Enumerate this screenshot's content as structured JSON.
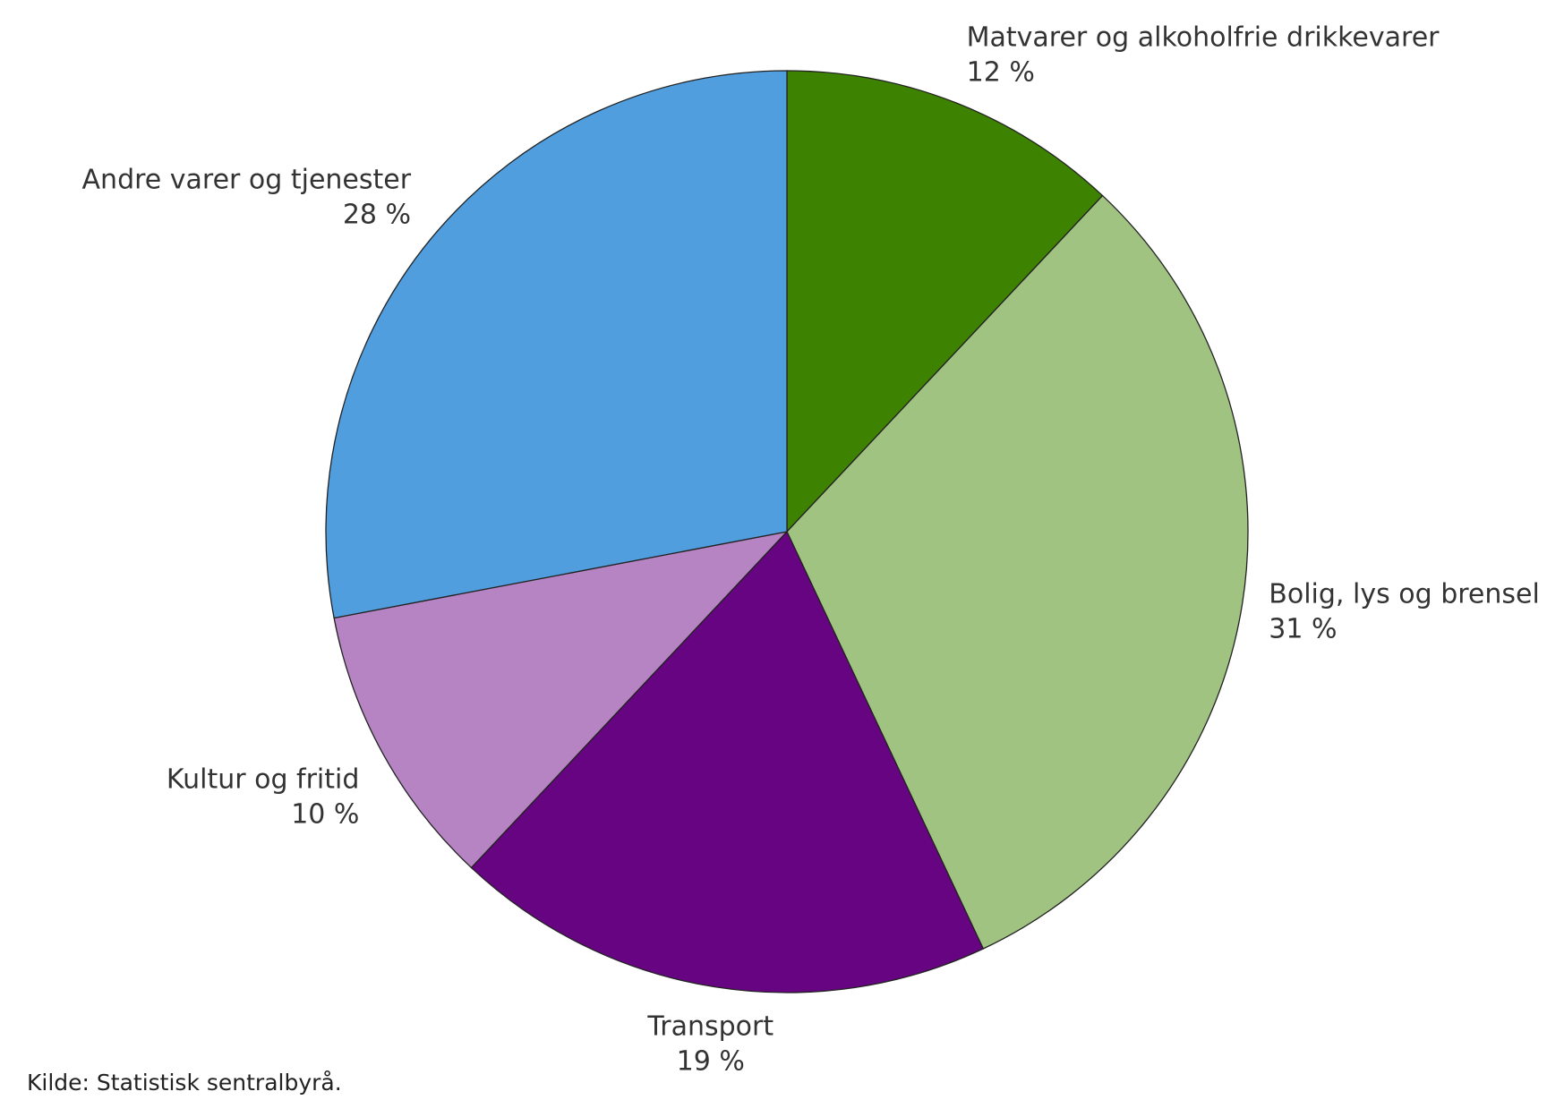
{
  "chart_data": {
    "type": "pie",
    "categories": [
      "Matvarer og alkoholfrie drikkevarer",
      "Bolig, lys og brensel",
      "Transport",
      "Kultur og fritid",
      "Andre varer og tjenester"
    ],
    "values": [
      12,
      31,
      19,
      10,
      28
    ],
    "value_labels": [
      "12 %",
      "31 %",
      "19 %",
      "10 %",
      "28 %"
    ],
    "colors": [
      "#3d8200",
      "#a0c382",
      "#660481",
      "#b683c3",
      "#509ede"
    ],
    "source": "Kilde: Statistisk sentralbyrå."
  }
}
